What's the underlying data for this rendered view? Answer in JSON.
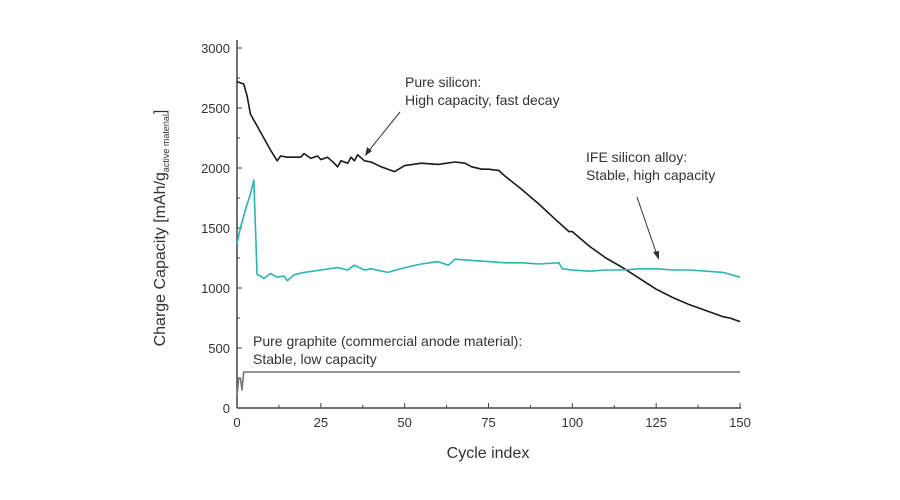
{
  "chart_data": {
    "type": "line",
    "title": "",
    "xlabel": "Cycle index",
    "ylabel": "Charge Capacity [mAh/g",
    "ylabel_subscript": "active material",
    "ylabel_close": "]",
    "xlim": [
      0,
      150
    ],
    "ylim": [
      0,
      3000
    ],
    "xticks": [
      0,
      25,
      50,
      75,
      100,
      125,
      150
    ],
    "yticks": [
      0,
      500,
      1000,
      1500,
      2000,
      2500,
      3000
    ],
    "grid": false,
    "series": [
      {
        "color": "#1a1a1a",
        "x": [
          0,
          2,
          3,
          4,
          6,
          8,
          10,
          12,
          13,
          15,
          17,
          19,
          20,
          22,
          24,
          25,
          27,
          29,
          30,
          31,
          33,
          34,
          35,
          36,
          38,
          40,
          43,
          45,
          47,
          50,
          55,
          60,
          65,
          68,
          70,
          73,
          75,
          78,
          80,
          85,
          90,
          95,
          99,
          100,
          105,
          110,
          115,
          120,
          125,
          130,
          135,
          140,
          145,
          147,
          150
        ],
        "y": [
          2720,
          2700,
          2600,
          2450,
          2350,
          2250,
          2150,
          2060,
          2100,
          2090,
          2090,
          2090,
          2120,
          2080,
          2100,
          2070,
          2090,
          2040,
          2010,
          2060,
          2040,
          2090,
          2060,
          2110,
          2060,
          2050,
          2010,
          1990,
          1970,
          2020,
          2040,
          2030,
          2050,
          2040,
          2010,
          1990,
          1990,
          1980,
          1930,
          1820,
          1700,
          1570,
          1470,
          1470,
          1350,
          1250,
          1170,
          1080,
          990,
          920,
          860,
          810,
          760,
          750,
          720
        ]
      },
      {
        "color": "#2ab5b0",
        "x": [
          0,
          1,
          2,
          3,
          4,
          5,
          6,
          7,
          8,
          10,
          12,
          14,
          15,
          17,
          20,
          25,
          30,
          33,
          35,
          38,
          40,
          45,
          50,
          55,
          60,
          63,
          65,
          70,
          75,
          80,
          85,
          90,
          96,
          97,
          100,
          105,
          110,
          115,
          120,
          125,
          130,
          135,
          140,
          145,
          150
        ],
        "y": [
          1370,
          1500,
          1600,
          1700,
          1780,
          1900,
          1110,
          1100,
          1080,
          1120,
          1090,
          1100,
          1060,
          1110,
          1130,
          1150,
          1170,
          1150,
          1190,
          1150,
          1160,
          1130,
          1170,
          1200,
          1220,
          1190,
          1240,
          1230,
          1220,
          1210,
          1210,
          1200,
          1210,
          1160,
          1150,
          1140,
          1150,
          1150,
          1160,
          1160,
          1150,
          1150,
          1140,
          1130,
          1090
        ]
      },
      {
        "color": "#777777",
        "x": [
          0,
          0.5,
          1,
          1.5,
          2,
          150
        ],
        "y": [
          100,
          250,
          250,
          150,
          300,
          300
        ]
      }
    ],
    "annotations": [
      {
        "lines": [
          "Pure silicon:",
          "High capacity, fast decay"
        ]
      },
      {
        "lines": [
          "IFE silicon alloy:",
          "Stable, high capacity"
        ]
      },
      {
        "lines": [
          "Pure graphite (commercial anode material):",
          "Stable, low capacity"
        ]
      }
    ]
  }
}
